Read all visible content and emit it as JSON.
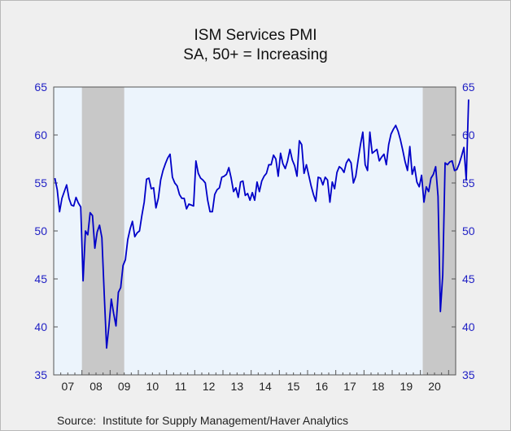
{
  "chart_data": {
    "type": "line",
    "title": "ISM Services PMI",
    "subtitle": "SA, 50+ = Increasing",
    "source": "Source:  Institute for Supply Management/Haver Analytics",
    "ylim": [
      35,
      65
    ],
    "yticks": [
      35,
      40,
      45,
      50,
      55,
      60,
      65
    ],
    "x_start": "2007-01",
    "x_end": "2021-03",
    "x_labels": [
      "07",
      "08",
      "09",
      "10",
      "11",
      "12",
      "13",
      "14",
      "15",
      "16",
      "17",
      "18",
      "19",
      "20"
    ],
    "recessions": [
      {
        "start": "2008-01",
        "end": "2009-06"
      },
      {
        "start": "2020-02",
        "end": "2021-03"
      }
    ],
    "grid": false,
    "legend": "none",
    "series": [
      {
        "values": [
          55.5,
          54.3,
          52.0,
          53.4,
          54.1,
          54.8,
          53.4,
          52.7,
          52.6,
          53.5,
          52.9,
          52.5,
          44.8,
          50.0,
          49.6,
          51.9,
          51.6,
          48.2,
          49.9,
          50.6,
          49.3,
          43.4,
          37.8,
          40.1,
          42.9,
          41.4,
          40.1,
          43.6,
          44.1,
          46.4,
          47.0,
          49.1,
          50.2,
          51.0,
          49.4,
          49.8,
          50.0,
          51.6,
          53.0,
          55.4,
          55.5,
          54.4,
          54.5,
          52.4,
          53.4,
          55.3,
          56.3,
          57.0,
          57.6,
          58.0,
          55.6,
          55.0,
          54.7,
          53.8,
          53.4,
          53.4,
          52.3,
          52.8,
          52.7,
          52.6,
          57.3,
          56.0,
          55.5,
          55.3,
          55.0,
          53.2,
          52.0,
          52.0,
          53.8,
          54.3,
          54.5,
          55.6,
          55.7,
          55.9,
          56.6,
          55.5,
          54.1,
          54.5,
          53.5,
          55.1,
          55.2,
          53.7,
          53.9,
          53.2,
          54.0,
          53.2,
          55.1,
          54.1,
          55.2,
          55.7,
          56.0,
          56.9,
          56.9,
          57.9,
          57.5,
          55.7,
          58.1,
          57.0,
          56.5,
          57.3,
          58.5,
          57.4,
          56.8,
          55.7,
          59.4,
          59.0,
          56.0,
          56.9,
          55.8,
          54.7,
          53.8,
          53.1,
          55.6,
          55.5,
          54.8,
          55.6,
          55.3,
          53.0,
          55.1,
          54.4,
          56.1,
          56.7,
          56.5,
          56.1,
          57.1,
          57.5,
          57.1,
          55.0,
          55.7,
          57.4,
          59.0,
          60.3,
          56.9,
          56.3,
          60.3,
          58.1,
          58.3,
          58.5,
          57.3,
          57.7,
          58.0,
          56.9,
          59.0,
          60.1,
          60.6,
          61.0,
          60.4,
          59.5,
          58.4,
          57.2,
          56.3,
          58.8,
          55.9,
          56.7,
          55.1,
          54.6,
          55.8,
          53.0,
          54.6,
          54.1,
          55.5,
          55.9,
          56.7,
          53.6,
          41.6,
          45.4,
          57.1,
          56.9,
          57.2,
          57.3,
          56.3,
          56.4,
          57.0,
          57.8,
          58.7,
          55.3,
          63.7
        ]
      }
    ]
  },
  "axes": {
    "left_color": "#1f1fc4",
    "right_color": "#1f1fc4"
  },
  "colors": {
    "line": "#0000c8",
    "plot_bg": "#ecf4fc",
    "recession": "#c8c8c8",
    "axis": "#555555"
  }
}
